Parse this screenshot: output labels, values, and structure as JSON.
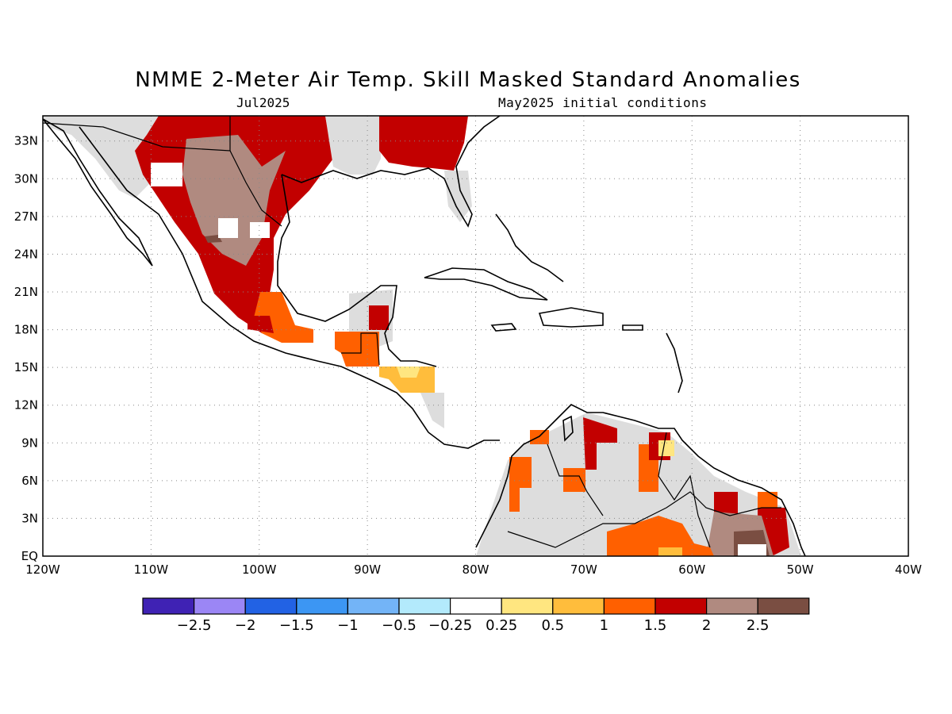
{
  "title": "NMME 2-Meter Air Temp. Skill Masked Standard Anomalies",
  "target_month": "Jul2025",
  "initial_conditions": "May2025 initial conditions",
  "map": {
    "region": "Central America / Caribbean",
    "lon_range": [
      -120,
      -40
    ],
    "lat_range": [
      0,
      35
    ],
    "lat_labels": [
      "33N",
      "30N",
      "27N",
      "24N",
      "21N",
      "18N",
      "15N",
      "12N",
      "9N",
      "6N",
      "3N",
      "EQ"
    ],
    "lat_values": [
      33,
      30,
      27,
      24,
      21,
      18,
      15,
      12,
      9,
      6,
      3,
      0
    ],
    "lon_labels": [
      "120W",
      "110W",
      "100W",
      "90W",
      "80W",
      "70W",
      "60W",
      "50W",
      "40W"
    ],
    "lon_values": [
      -120,
      -110,
      -100,
      -90,
      -80,
      -70,
      -60,
      -50,
      -40
    ],
    "grid": true
  },
  "colorbar": {
    "colors": [
      "#3f22b4",
      "#9b86f5",
      "#2262e4",
      "#3c96f3",
      "#73b4f7",
      "#b3eafc",
      "#ffffff",
      "#ffe680",
      "#ffbd3c",
      "#ff6000",
      "#c20000",
      "#b08a80",
      "#7a4e42"
    ],
    "labels": [
      "-2.5",
      "-2",
      "-1.5",
      "-1",
      "-0.5",
      "-0.25",
      "0.25",
      "0.5",
      "1",
      "1.5",
      "2",
      "2.5"
    ]
  },
  "colors": {
    "masked_gray": "#dddddd",
    "coast": "#000000"
  }
}
